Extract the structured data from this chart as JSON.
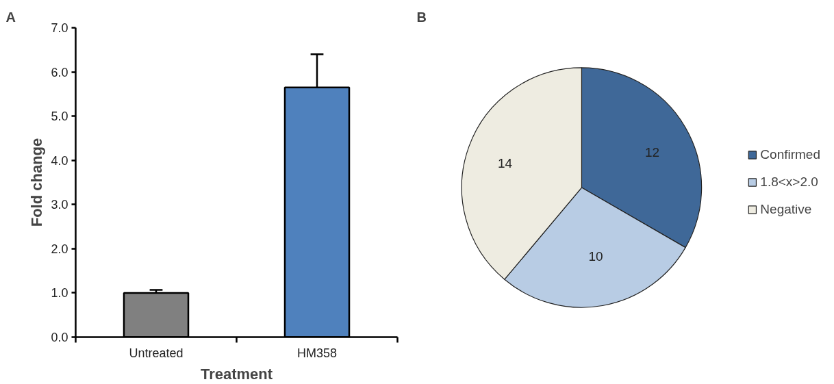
{
  "chart_data": [
    {
      "type": "bar",
      "title": "A",
      "xlabel": "Treatment",
      "ylabel": "Fold change",
      "categories": [
        "Untreated",
        "HM358"
      ],
      "values": [
        1.0,
        5.65
      ],
      "colors": [
        "#808080",
        "#4f81bd"
      ],
      "errors": [
        [
          1.0,
          1.07
        ],
        [
          5.65,
          6.4
        ]
      ],
      "ylim": [
        0,
        7
      ],
      "yticks": [
        {
          "value": 0,
          "label": "0.0"
        },
        {
          "value": 1,
          "label": "1.0"
        },
        {
          "value": 2,
          "label": "2.0"
        },
        {
          "value": 3,
          "label": "3.0"
        },
        {
          "value": 4,
          "label": "4.0"
        },
        {
          "value": 5,
          "label": "5.0"
        },
        {
          "value": 6,
          "label": "6.0"
        },
        {
          "value": 7,
          "label": "7.0"
        }
      ],
      "grid": false
    },
    {
      "type": "pie",
      "title": "B",
      "categories": [
        "Confirmed",
        "1.8<x>2.0",
        "Negative"
      ],
      "values": [
        12,
        10,
        14
      ],
      "colors": [
        "#3f6898",
        "#b8cce4",
        "#eeece1"
      ],
      "data_labels": true,
      "legend": "right"
    }
  ]
}
